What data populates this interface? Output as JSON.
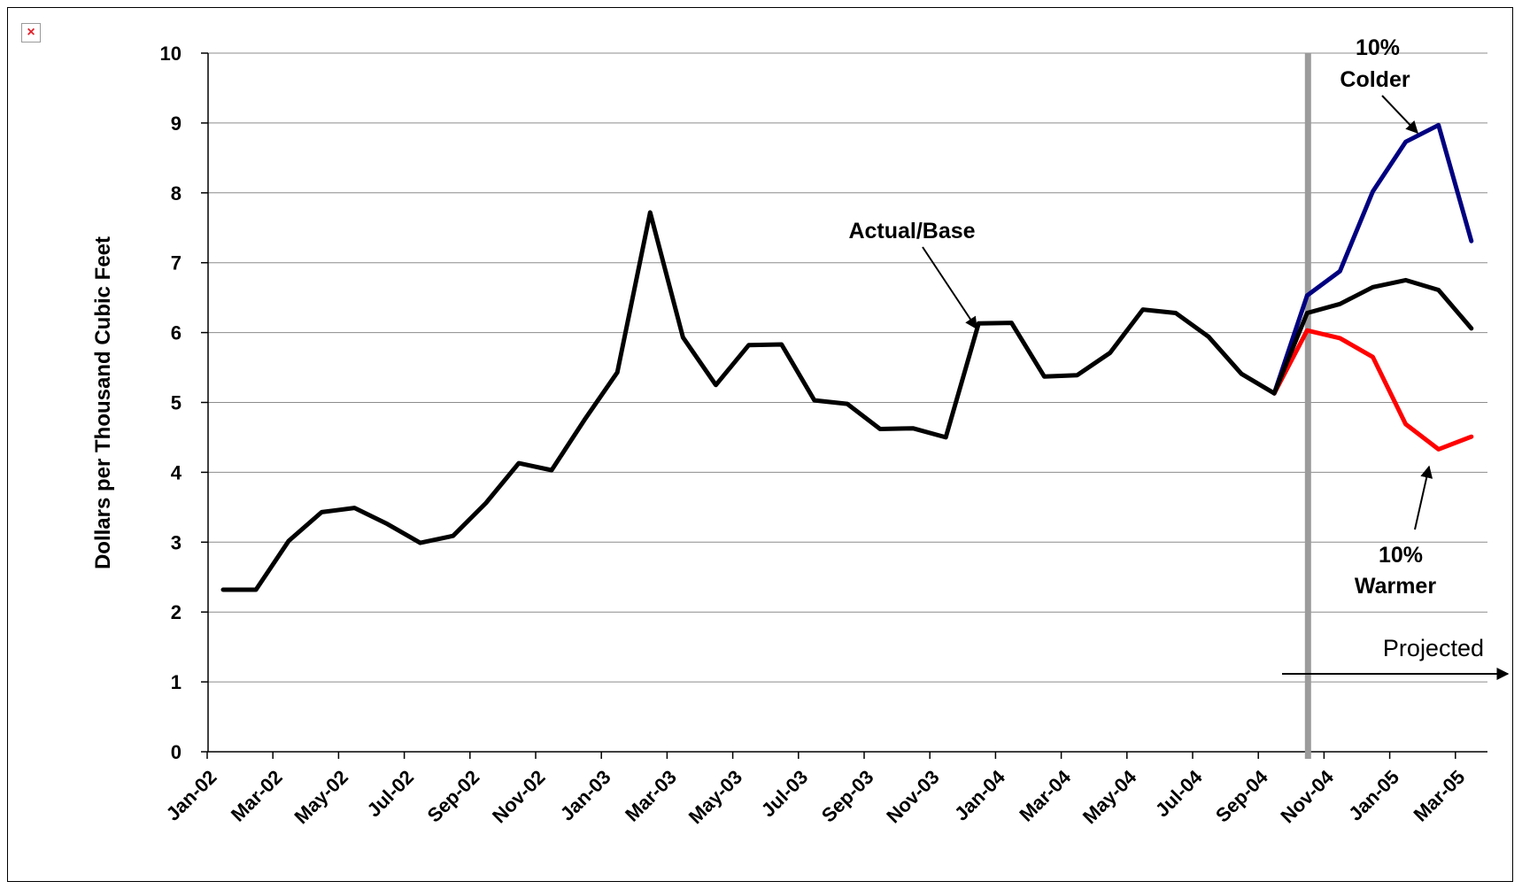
{
  "broken_image_glyph": "×",
  "chart_data": {
    "type": "line",
    "title": "",
    "xlabel": "",
    "ylabel": "Dollars per Thousand Cubic Feet",
    "ylim": [
      0,
      10
    ],
    "yticks": [
      0,
      1,
      2,
      3,
      4,
      5,
      6,
      7,
      8,
      9,
      10
    ],
    "grid": true,
    "x": [
      "Jan-02",
      "Feb-02",
      "Mar-02",
      "Apr-02",
      "May-02",
      "Jun-02",
      "Jul-02",
      "Aug-02",
      "Sep-02",
      "Oct-02",
      "Nov-02",
      "Dec-02",
      "Jan-03",
      "Feb-03",
      "Mar-03",
      "Apr-03",
      "May-03",
      "Jun-03",
      "Jul-03",
      "Aug-03",
      "Sep-03",
      "Oct-03",
      "Nov-03",
      "Dec-03",
      "Jan-04",
      "Feb-04",
      "Mar-04",
      "Apr-04",
      "May-04",
      "Jun-04",
      "Jul-04",
      "Aug-04",
      "Sep-04",
      "Oct-04",
      "Nov-04",
      "Dec-04",
      "Jan-05",
      "Feb-05",
      "Mar-05",
      "Apr-05"
    ],
    "xtick_labels": [
      "Jan-02",
      "Mar-02",
      "May-02",
      "Jul-02",
      "Sep-02",
      "Nov-02",
      "Jan-03",
      "Mar-03",
      "May-03",
      "Jul-03",
      "Sep-03",
      "Nov-03",
      "Jan-04",
      "Mar-04",
      "May-04",
      "Jul-04",
      "Sep-04",
      "Nov-04",
      "Jan-05",
      "Mar-05"
    ],
    "series": [
      {
        "name": "Actual/Base",
        "color": "#000000",
        "values": [
          2.32,
          2.32,
          3.02,
          3.43,
          3.49,
          3.26,
          2.99,
          3.09,
          3.56,
          4.13,
          4.03,
          4.75,
          5.43,
          7.72,
          5.93,
          5.25,
          5.82,
          5.83,
          5.03,
          4.98,
          4.62,
          4.63,
          4.5,
          6.13,
          6.14,
          5.37,
          5.39,
          5.71,
          6.33,
          6.28,
          5.94,
          5.41,
          5.13,
          6.28,
          6.41,
          6.65,
          6.75,
          6.61,
          6.06,
          null
        ]
      },
      {
        "name": "10% Colder",
        "color": "#000080",
        "values": [
          null,
          null,
          null,
          null,
          null,
          null,
          null,
          null,
          null,
          null,
          null,
          null,
          null,
          null,
          null,
          null,
          null,
          null,
          null,
          null,
          null,
          null,
          null,
          null,
          null,
          null,
          null,
          null,
          null,
          null,
          null,
          null,
          5.13,
          6.53,
          6.88,
          8.02,
          8.73,
          8.97,
          7.31,
          null
        ]
      },
      {
        "name": "10% Warmer",
        "color": "#ff0000",
        "values": [
          null,
          null,
          null,
          null,
          null,
          null,
          null,
          null,
          null,
          null,
          null,
          null,
          null,
          null,
          null,
          null,
          null,
          null,
          null,
          null,
          null,
          null,
          null,
          null,
          null,
          null,
          null,
          null,
          null,
          null,
          null,
          null,
          5.13,
          6.03,
          5.92,
          5.65,
          4.69,
          4.33,
          4.51,
          null
        ]
      }
    ],
    "projection_start": "Oct-04",
    "annotations": {
      "actual_base": "Actual/Base",
      "colder_line1": "10%",
      "colder_line2": "Colder",
      "warmer_line1": "10%",
      "warmer_line2": "Warmer",
      "projected": "Projected"
    }
  }
}
